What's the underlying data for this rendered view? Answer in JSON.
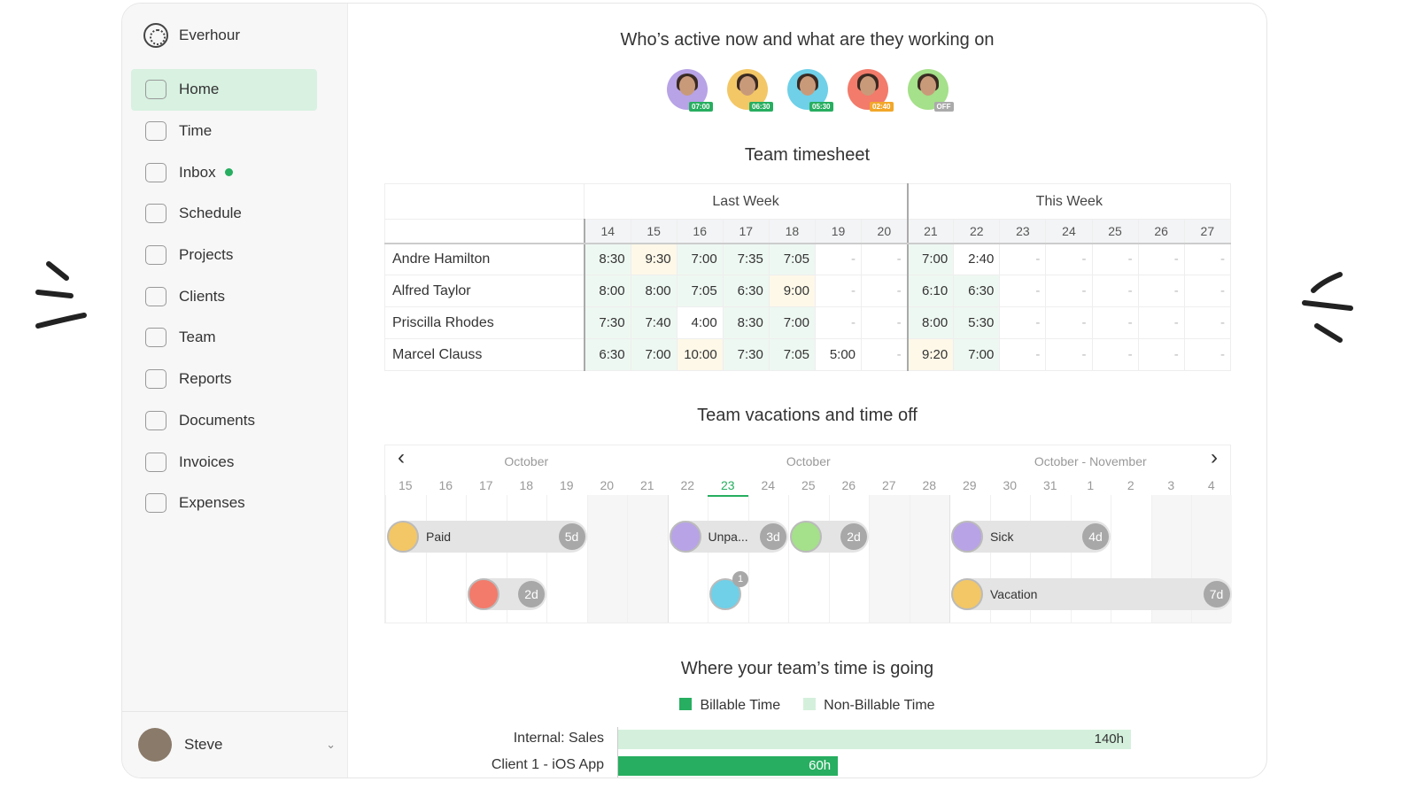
{
  "app": {
    "name": "Everhour"
  },
  "sidebar": {
    "items": [
      {
        "label": "Home",
        "icon": "home-icon",
        "active": true
      },
      {
        "label": "Time",
        "icon": "clock-icon"
      },
      {
        "label": "Inbox",
        "icon": "bell-icon",
        "dot": true
      },
      {
        "label": "Schedule",
        "icon": "schedule-icon"
      },
      {
        "label": "Projects",
        "icon": "briefcase-icon"
      },
      {
        "label": "Clients",
        "icon": "clients-icon"
      },
      {
        "label": "Team",
        "icon": "team-icon"
      },
      {
        "label": "Reports",
        "icon": "pie-chart-icon"
      },
      {
        "label": "Documents",
        "icon": "document-icon"
      },
      {
        "label": "Invoices",
        "icon": "invoice-icon"
      },
      {
        "label": "Expenses",
        "icon": "wallet-icon"
      }
    ],
    "user": "Steve"
  },
  "active": {
    "title": "Who’s active now and what are they working on",
    "people": [
      {
        "badge": "07:00",
        "bg": "#b7a3e6",
        "badgeColor": "#27ae60"
      },
      {
        "badge": "06:30",
        "bg": "#f3c766",
        "badgeColor": "#27ae60"
      },
      {
        "badge": "05:30",
        "bg": "#6fd0e8",
        "badgeColor": "#27ae60"
      },
      {
        "badge": "02:40",
        "bg": "#f27b6b",
        "badgeColor": "#f2a72a"
      },
      {
        "badge": "OFF",
        "bg": "#a5e08a",
        "badgeColor": "#aaaaaa"
      }
    ]
  },
  "timesheet": {
    "title": "Team timesheet",
    "groups": [
      "Last Week",
      "This Week"
    ],
    "days": [
      "14",
      "15",
      "16",
      "17",
      "18",
      "19",
      "20",
      "21",
      "22",
      "23",
      "24",
      "25",
      "26",
      "27"
    ],
    "rows": [
      {
        "name": "Andre Hamilton",
        "values": [
          "8:30",
          "9:30",
          "7:00",
          "7:35",
          "7:05",
          "-",
          "-",
          "7:00",
          "2:40",
          "-",
          "-",
          "-",
          "-",
          "-"
        ],
        "status": [
          "g",
          "y",
          "g",
          "g",
          "g",
          "w",
          "w",
          "g",
          "w",
          "w",
          "w",
          "w",
          "w",
          "w"
        ]
      },
      {
        "name": "Alfred Taylor",
        "values": [
          "8:00",
          "8:00",
          "7:05",
          "6:30",
          "9:00",
          "-",
          "-",
          "6:10",
          "6:30",
          "-",
          "-",
          "-",
          "-",
          "-"
        ],
        "status": [
          "g",
          "g",
          "g",
          "g",
          "y",
          "w",
          "w",
          "g",
          "g",
          "w",
          "w",
          "w",
          "w",
          "w"
        ]
      },
      {
        "name": "Priscilla Rhodes",
        "values": [
          "7:30",
          "7:40",
          "4:00",
          "8:30",
          "7:00",
          "-",
          "-",
          "8:00",
          "5:30",
          "-",
          "-",
          "-",
          "-",
          "-"
        ],
        "status": [
          "g",
          "g",
          "w",
          "g",
          "g",
          "w",
          "w",
          "g",
          "g",
          "w",
          "w",
          "w",
          "w",
          "w"
        ]
      },
      {
        "name": "Marcel Clauss",
        "values": [
          "6:30",
          "7:00",
          "10:00",
          "7:30",
          "7:05",
          "5:00",
          "-",
          "9:20",
          "7:00",
          "-",
          "-",
          "-",
          "-",
          "-"
        ],
        "status": [
          "g",
          "g",
          "y",
          "g",
          "g",
          "w",
          "w",
          "y",
          "g",
          "w",
          "w",
          "w",
          "w",
          "w"
        ]
      }
    ]
  },
  "vacations": {
    "title": "Team vacations and time off",
    "months": [
      "October",
      "October",
      "October - November"
    ],
    "days": [
      "15",
      "16",
      "17",
      "18",
      "19",
      "20",
      "21",
      "22",
      "23",
      "24",
      "25",
      "26",
      "27",
      "28",
      "29",
      "30",
      "31",
      "1",
      "2",
      "3",
      "4"
    ],
    "today": "23",
    "bars": [
      {
        "label": "Paid",
        "count": "5d",
        "start": 0,
        "len": 5,
        "row": 0,
        "bg": "#f3c766"
      },
      {
        "label": "Unpa...",
        "count": "3d",
        "start": 7,
        "len": 3,
        "row": 0,
        "bg": "#b7a3e6"
      },
      {
        "label": "",
        "count": "2d",
        "start": 10,
        "len": 2,
        "row": 0,
        "bg": "#a5e08a"
      },
      {
        "label": "Sick",
        "count": "4d",
        "start": 14,
        "len": 4,
        "row": 0,
        "bg": "#b7a3e6"
      },
      {
        "label": "",
        "count": "2d",
        "start": 2,
        "len": 2,
        "row": 1,
        "bg": "#f27b6b"
      },
      {
        "label": "",
        "count": "1",
        "start": 8,
        "len": 1,
        "row": 1,
        "bg": "#6fd0e8",
        "single": true
      },
      {
        "label": "Vacation",
        "count": "7d",
        "start": 14,
        "len": 7,
        "row": 1,
        "bg": "#f3c766"
      }
    ]
  },
  "time_going": {
    "title": "Where your team’s time is going",
    "legend": [
      {
        "label": "Billable Time",
        "color": "#27ae60"
      },
      {
        "label": "Non-Billable Time",
        "color": "#d4f0dc"
      }
    ],
    "chart_data": {
      "type": "bar",
      "categories": [
        "Internal: Sales",
        "Client 1 - iOS App"
      ],
      "values": [
        140,
        60
      ],
      "value_labels": [
        "140h",
        "60h"
      ],
      "colors": [
        "#d4f0dc",
        "#27ae60"
      ]
    }
  }
}
